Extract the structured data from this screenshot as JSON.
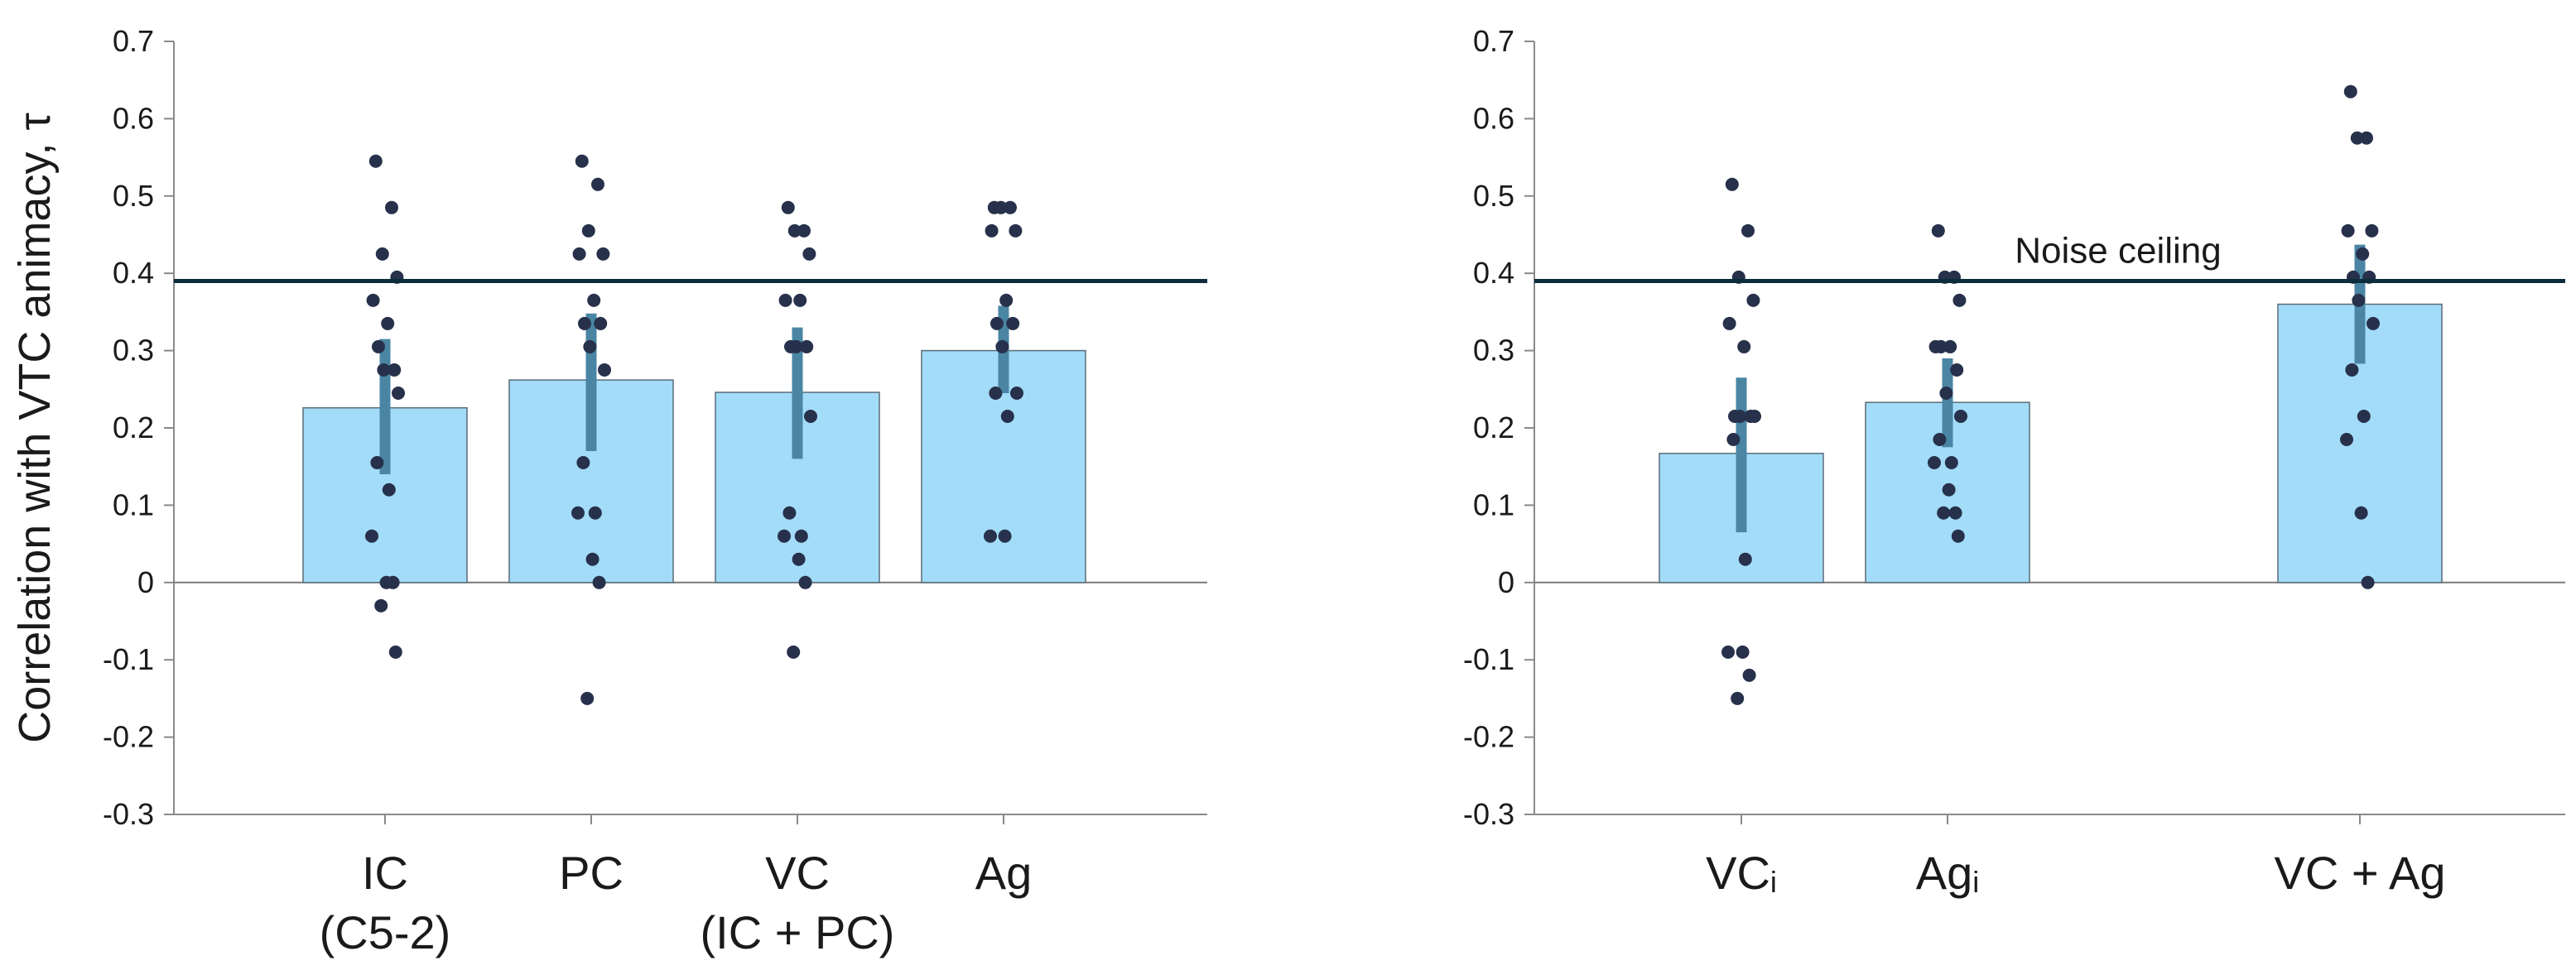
{
  "chart_data": [
    {
      "type": "bar",
      "panel": "left",
      "ylabel": "Correlation with VTC animacy, τ",
      "ylim": [
        -0.3,
        0.7
      ],
      "yticks": [
        -0.3,
        -0.2,
        -0.1,
        0,
        0.1,
        0.2,
        0.3,
        0.4,
        0.5,
        0.6,
        0.7
      ],
      "ytick_labels": [
        "-0.3",
        "-0.2",
        "-0.1",
        "0",
        "0.1",
        "0.2",
        "0.3",
        "0.4",
        "0.5",
        "0.6",
        "0.7"
      ],
      "noise_ceiling": 0.39,
      "categories": [
        {
          "lines": [
            "IC",
            "(C5-2)"
          ],
          "value": 0.226,
          "err": [
            0.14,
            0.315
          ],
          "points": [
            0.545,
            0.485,
            0.425,
            0.395,
            0.365,
            0.335,
            0.305,
            0.275,
            0.275,
            0.245,
            0.155,
            0.12,
            0.06,
            0.0,
            0.0,
            -0.03,
            -0.09
          ]
        },
        {
          "lines": [
            "PC"
          ],
          "value": 0.262,
          "err": [
            0.17,
            0.348
          ],
          "points": [
            0.545,
            0.515,
            0.455,
            0.425,
            0.425,
            0.365,
            0.335,
            0.335,
            0.305,
            0.275,
            0.155,
            0.09,
            0.09,
            0.03,
            0.0,
            -0.15
          ]
        },
        {
          "lines": [
            "VC",
            "(IC + PC)"
          ],
          "value": 0.246,
          "err": [
            0.16,
            0.33
          ],
          "points": [
            0.485,
            0.455,
            0.455,
            0.425,
            0.365,
            0.365,
            0.305,
            0.305,
            0.305,
            0.215,
            0.09,
            0.06,
            0.06,
            0.03,
            0.0,
            -0.09
          ]
        },
        {
          "lines": [
            "Ag"
          ],
          "value": 0.3,
          "err": [
            0.245,
            0.358
          ],
          "points": [
            0.485,
            0.485,
            0.485,
            0.455,
            0.455,
            0.365,
            0.335,
            0.335,
            0.305,
            0.245,
            0.245,
            0.215,
            0.06,
            0.06
          ]
        }
      ]
    },
    {
      "type": "bar",
      "panel": "right",
      "ylim": [
        -0.3,
        0.7
      ],
      "yticks": [
        -0.3,
        -0.2,
        -0.1,
        0,
        0.1,
        0.2,
        0.3,
        0.4,
        0.5,
        0.6,
        0.7
      ],
      "ytick_labels": [
        "-0.3",
        "-0.2",
        "-0.1",
        "0",
        "0.1",
        "0.2",
        "0.3",
        "0.4",
        "0.5",
        "0.6",
        "0.7"
      ],
      "noise_ceiling": 0.39,
      "noise_ceiling_label": "Noise ceiling",
      "categories": [
        {
          "lines": [
            "VC"
          ],
          "subscript": "i",
          "slot": 1,
          "value": 0.167,
          "err": [
            0.065,
            0.265
          ],
          "points": [
            0.515,
            0.455,
            0.395,
            0.365,
            0.335,
            0.305,
            0.215,
            0.215,
            0.215,
            0.215,
            0.185,
            0.03,
            -0.09,
            -0.09,
            -0.12,
            -0.15
          ]
        },
        {
          "lines": [
            "Ag"
          ],
          "subscript": "i",
          "slot": 2,
          "value": 0.233,
          "err": [
            0.175,
            0.29
          ],
          "points": [
            0.455,
            0.395,
            0.395,
            0.365,
            0.305,
            0.305,
            0.305,
            0.275,
            0.245,
            0.215,
            0.185,
            0.155,
            0.155,
            0.12,
            0.09,
            0.09,
            0.06
          ]
        },
        {
          "lines": [
            "VC + Ag"
          ],
          "subscript": "",
          "slot": 4,
          "value": 0.36,
          "err": [
            0.283,
            0.437
          ],
          "points": [
            0.635,
            0.575,
            0.575,
            0.455,
            0.455,
            0.425,
            0.395,
            0.395,
            0.365,
            0.335,
            0.275,
            0.215,
            0.185,
            0.09,
            0.0
          ]
        }
      ]
    }
  ],
  "colors": {
    "bar_fill": "#a3dcf8",
    "bar_stroke": "#5a6c78",
    "error_bar": "#4a86a4",
    "dot": "#27314b",
    "noise_line": "#0d2d3d",
    "axis": "#8a8a8a"
  }
}
